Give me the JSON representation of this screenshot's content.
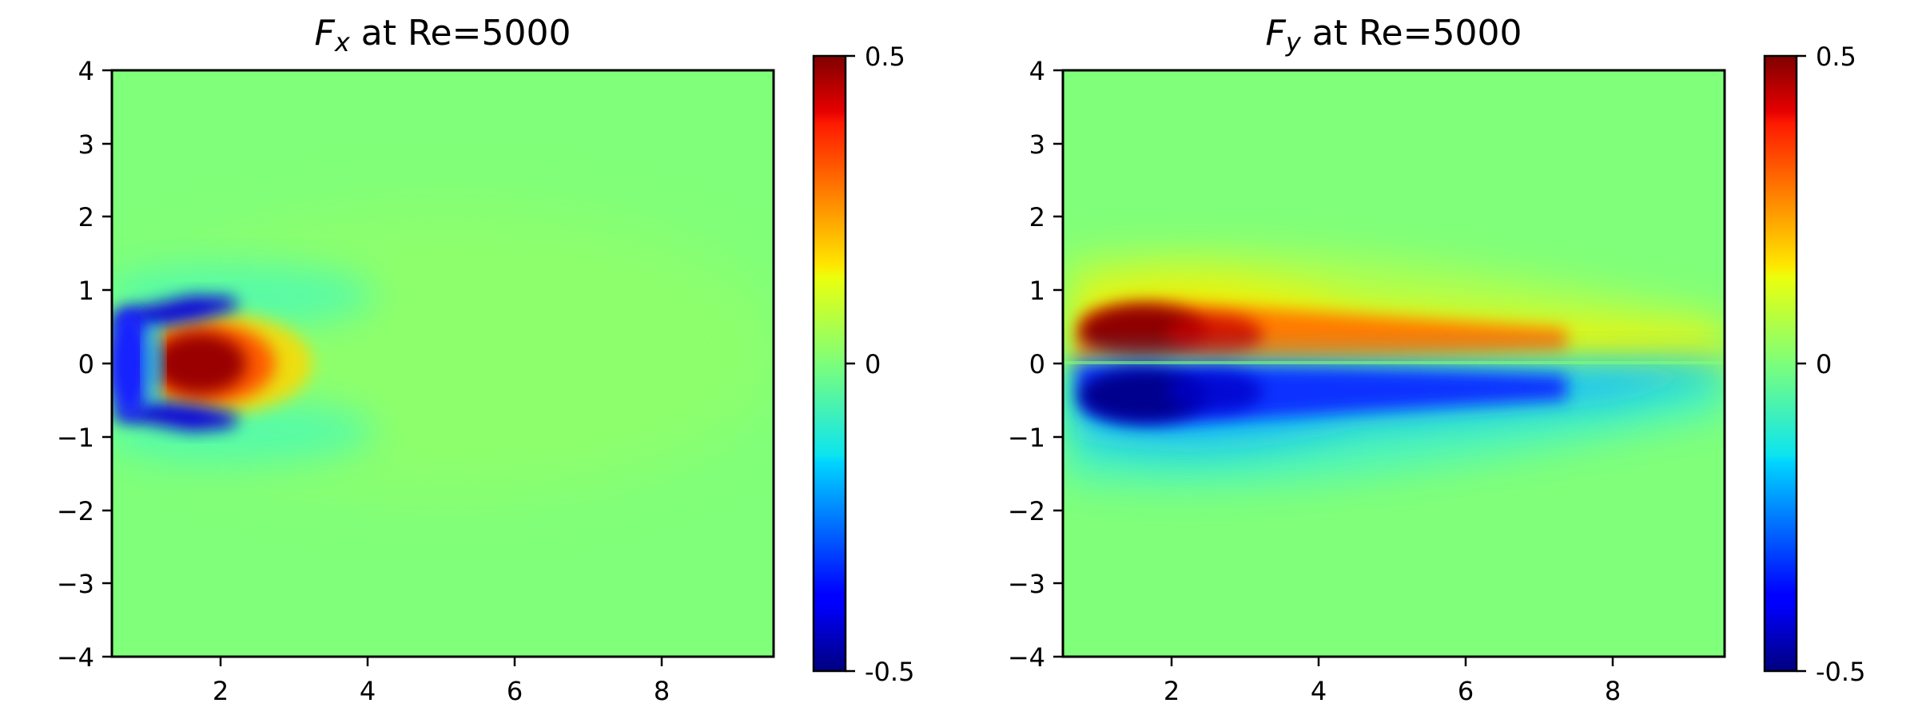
{
  "chart_data": [
    {
      "type": "heatmap",
      "title_symbol": "F",
      "title_subscript": "x",
      "title_rest": " at Re=5000",
      "xlim": [
        0.5,
        9.5
      ],
      "ylim": [
        -4,
        4
      ],
      "xticks": [
        2,
        4,
        6,
        8
      ],
      "xtick_labels": [
        "2",
        "4",
        "6",
        "8"
      ],
      "yticks": [
        4,
        3,
        2,
        1,
        0,
        -1,
        -2,
        -3,
        -4
      ],
      "ytick_labels": [
        "4",
        "3",
        "2",
        "1",
        "0",
        "−1",
        "−2",
        "−3",
        "−4"
      ],
      "colormap": "jet",
      "clim": [
        -0.5,
        0.5
      ],
      "colorbar_ticks": [
        0.5,
        0,
        -0.5
      ],
      "colorbar_tick_labels": [
        "0.5",
        "0",
        "-0.5"
      ],
      "field": "Fx"
    },
    {
      "type": "heatmap",
      "title_symbol": "F",
      "title_subscript": "y",
      "title_rest": " at Re=5000",
      "xlim": [
        0.5,
        9.5
      ],
      "ylim": [
        -4,
        4
      ],
      "xticks": [
        2,
        4,
        6,
        8
      ],
      "xtick_labels": [
        "2",
        "4",
        "6",
        "8"
      ],
      "yticks": [
        4,
        3,
        2,
        1,
        0,
        -1,
        -2,
        -3,
        -4
      ],
      "ytick_labels": [
        "4",
        "3",
        "2",
        "1",
        "0",
        "−1",
        "−2",
        "−3",
        "−4"
      ],
      "colormap": "jet",
      "clim": [
        -0.5,
        0.5
      ],
      "colorbar_ticks": [
        0.5,
        0,
        -0.5
      ],
      "colorbar_tick_labels": [
        "0.5",
        "0",
        "-0.5"
      ],
      "field": "Fy"
    }
  ]
}
